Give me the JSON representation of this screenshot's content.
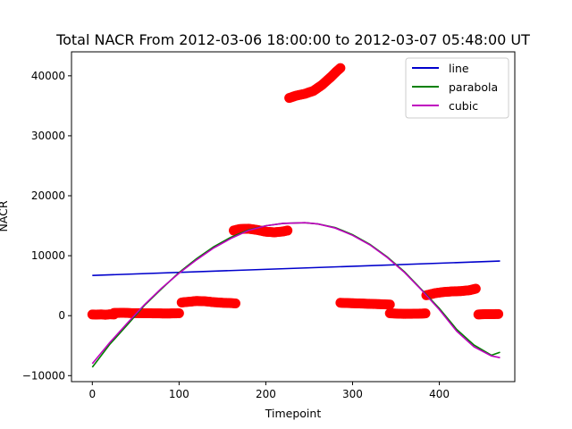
{
  "chart_data": {
    "type": "scatter",
    "title": "Total NACR From 2012-03-06 18:00:00 to 2012-03-07 05:48:00 UT",
    "xlabel": "Timepoint",
    "ylabel": "NACR",
    "xlim": [
      -24,
      487
    ],
    "ylim": [
      -11000,
      44000
    ],
    "xticks": [
      0,
      100,
      200,
      300,
      400
    ],
    "yticks": [
      -10000,
      0,
      10000,
      20000,
      30000,
      40000
    ],
    "grid": false,
    "legend_position": "top-right",
    "scatter": {
      "color": "#ff0000",
      "segments": [
        {
          "x": [
            0,
            5,
            10,
            15,
            20,
            25
          ],
          "y": [
            200,
            180,
            220,
            150,
            230,
            200
          ]
        },
        {
          "x": [
            25,
            35,
            45,
            55,
            65,
            75,
            85,
            95,
            100
          ],
          "y": [
            450,
            480,
            430,
            420,
            400,
            380,
            370,
            380,
            400
          ]
        },
        {
          "x": [
            103,
            110,
            120,
            130,
            140,
            150,
            160,
            165
          ],
          "y": [
            2200,
            2300,
            2450,
            2400,
            2250,
            2150,
            2100,
            2050
          ]
        },
        {
          "x": [
            163,
            170,
            180,
            190,
            200,
            210,
            220,
            225
          ],
          "y": [
            14200,
            14450,
            14500,
            14300,
            14000,
            13900,
            14050,
            14200
          ]
        },
        {
          "x": [
            227,
            235,
            245,
            255,
            265,
            275,
            282,
            286
          ],
          "y": [
            36300,
            36700,
            37000,
            37500,
            38500,
            39800,
            40800,
            41300
          ]
        },
        {
          "x": [
            286,
            295,
            305,
            315,
            325,
            335,
            343
          ],
          "y": [
            2150,
            2100,
            2050,
            2000,
            1950,
            1900,
            1850
          ]
        },
        {
          "x": [
            343,
            350,
            360,
            370,
            380,
            384
          ],
          "y": [
            400,
            350,
            300,
            320,
            350,
            380
          ]
        },
        {
          "x": [
            385,
            395,
            405,
            415,
            425,
            435,
            442
          ],
          "y": [
            3400,
            3750,
            3950,
            4050,
            4100,
            4250,
            4500
          ]
        },
        {
          "x": [
            445,
            452,
            460,
            468
          ],
          "y": [
            200,
            250,
            250,
            280
          ]
        }
      ]
    },
    "series": [
      {
        "name": "line",
        "color": "#0000cc",
        "x": [
          0,
          470
        ],
        "y": [
          6700,
          9100
        ]
      },
      {
        "name": "parabola",
        "color": "#008000",
        "x": [
          0,
          20,
          40,
          60,
          80,
          100,
          120,
          140,
          160,
          180,
          200,
          220,
          245,
          260,
          280,
          300,
          320,
          340,
          360,
          380,
          400,
          420,
          440,
          460,
          470
        ],
        "y": [
          -8600,
          -4800,
          -1600,
          1700,
          4500,
          7200,
          9500,
          11500,
          13100,
          14300,
          15000,
          15400,
          15500,
          15300,
          14700,
          13500,
          11900,
          9800,
          7300,
          4300,
          1200,
          -2300,
          -4900,
          -6600,
          -6100
        ]
      },
      {
        "name": "cubic",
        "color": "#bf00bf",
        "x": [
          0,
          20,
          40,
          60,
          80,
          100,
          120,
          140,
          160,
          180,
          200,
          220,
          245,
          260,
          280,
          300,
          320,
          340,
          360,
          380,
          400,
          420,
          440,
          460,
          470
        ],
        "y": [
          -8000,
          -4500,
          -1300,
          1800,
          4600,
          7100,
          9300,
          11300,
          12900,
          14200,
          15000,
          15400,
          15500,
          15300,
          14600,
          13400,
          11800,
          9700,
          7200,
          4200,
          1000,
          -2600,
          -5200,
          -6700,
          -7000
        ]
      }
    ]
  }
}
